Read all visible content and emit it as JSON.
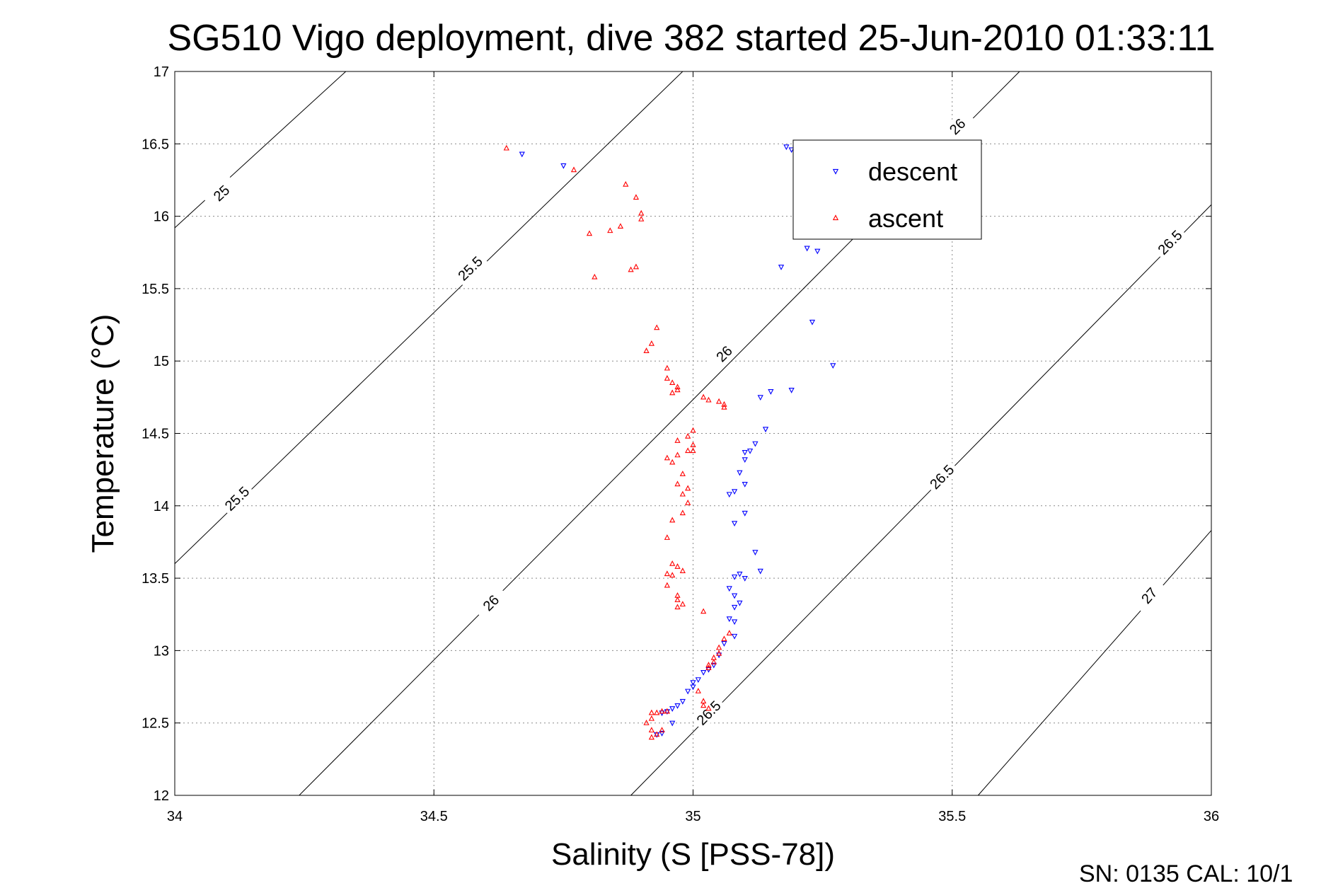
{
  "chart_data": {
    "type": "scatter",
    "title": "SG510 Vigo deployment, dive 382 started 25-Jun-2010 01:33:11",
    "xlabel": "Salinity (S [PSS-78])",
    "ylabel": "Temperature (°C)",
    "xlim": [
      34,
      36
    ],
    "ylim": [
      12,
      17
    ],
    "xticks": [
      "34",
      "34.5",
      "35",
      "35.5",
      "36"
    ],
    "yticks": [
      "12",
      "12.5",
      "13",
      "13.5",
      "14",
      "14.5",
      "15",
      "15.5",
      "16",
      "16.5",
      "17"
    ],
    "grid": true,
    "legend_position": "top-right",
    "footer": "SN: 0135  CAL: 10/1",
    "contours": [
      {
        "label": "25",
        "points": [
          [
            34.0,
            15.92
          ],
          [
            34.33,
            17.0
          ]
        ],
        "labels_at": [
          [
            34.09,
            16.16
          ]
        ]
      },
      {
        "label": "25.5",
        "points": [
          [
            34.0,
            13.6
          ],
          [
            34.98,
            17.0
          ]
        ],
        "labels_at": [
          [
            34.12,
            14.05
          ],
          [
            34.57,
            15.64
          ]
        ]
      },
      {
        "label": "26",
        "points": [
          [
            34.24,
            12.0
          ],
          [
            35.63,
            17.0
          ]
        ],
        "labels_at": [
          [
            34.61,
            13.33
          ],
          [
            35.06,
            15.05
          ],
          [
            35.51,
            16.62
          ]
        ]
      },
      {
        "label": "26.5",
        "points": [
          [
            34.88,
            12.0
          ],
          [
            36.0,
            16.08
          ]
        ],
        "labels_at": [
          [
            35.03,
            12.57
          ],
          [
            35.48,
            14.2
          ],
          [
            35.92,
            15.82
          ]
        ]
      },
      {
        "label": "27",
        "points": [
          [
            35.55,
            12.0
          ],
          [
            36.0,
            13.83
          ]
        ],
        "labels_at": [
          [
            35.88,
            13.38
          ]
        ]
      }
    ],
    "series": [
      {
        "name": "descent",
        "color": "#0000ff",
        "marker": "triangle-down",
        "points": [
          [
            34.67,
            16.43
          ],
          [
            34.75,
            16.35
          ],
          [
            35.18,
            16.48
          ],
          [
            35.19,
            16.46
          ],
          [
            35.22,
            15.78
          ],
          [
            35.24,
            15.76
          ],
          [
            35.17,
            15.65
          ],
          [
            35.23,
            15.27
          ],
          [
            35.27,
            14.97
          ],
          [
            35.19,
            14.8
          ],
          [
            35.15,
            14.79
          ],
          [
            35.13,
            14.75
          ],
          [
            35.14,
            14.53
          ],
          [
            35.12,
            14.43
          ],
          [
            35.11,
            14.38
          ],
          [
            35.1,
            14.37
          ],
          [
            35.1,
            14.32
          ],
          [
            35.09,
            14.23
          ],
          [
            35.1,
            14.15
          ],
          [
            35.08,
            14.1
          ],
          [
            35.07,
            14.08
          ],
          [
            35.1,
            13.95
          ],
          [
            35.08,
            13.88
          ],
          [
            35.12,
            13.68
          ],
          [
            35.13,
            13.55
          ],
          [
            35.09,
            13.53
          ],
          [
            35.1,
            13.5
          ],
          [
            35.08,
            13.51
          ],
          [
            35.07,
            13.43
          ],
          [
            35.08,
            13.38
          ],
          [
            35.09,
            13.33
          ],
          [
            35.08,
            13.3
          ],
          [
            35.07,
            13.22
          ],
          [
            35.08,
            13.2
          ],
          [
            35.08,
            13.1
          ],
          [
            35.06,
            13.05
          ],
          [
            35.05,
            12.97
          ],
          [
            35.04,
            12.9
          ],
          [
            35.03,
            12.87
          ],
          [
            35.02,
            12.85
          ],
          [
            35.01,
            12.8
          ],
          [
            35.0,
            12.78
          ],
          [
            35.0,
            12.75
          ],
          [
            34.99,
            12.72
          ],
          [
            34.98,
            12.65
          ],
          [
            34.97,
            12.62
          ],
          [
            34.96,
            12.6
          ],
          [
            34.95,
            12.58
          ],
          [
            34.94,
            12.57
          ],
          [
            34.96,
            12.5
          ],
          [
            34.94,
            12.43
          ],
          [
            34.93,
            12.42
          ]
        ]
      },
      {
        "name": "ascent",
        "color": "#ff0000",
        "marker": "triangle-up",
        "points": [
          [
            34.64,
            16.47
          ],
          [
            34.77,
            16.32
          ],
          [
            34.87,
            16.22
          ],
          [
            34.89,
            16.13
          ],
          [
            34.9,
            16.02
          ],
          [
            34.9,
            15.98
          ],
          [
            34.86,
            15.93
          ],
          [
            34.84,
            15.9
          ],
          [
            34.8,
            15.88
          ],
          [
            34.89,
            15.65
          ],
          [
            34.88,
            15.63
          ],
          [
            34.81,
            15.58
          ],
          [
            34.93,
            15.23
          ],
          [
            34.92,
            15.12
          ],
          [
            34.91,
            15.07
          ],
          [
            34.95,
            14.95
          ],
          [
            34.95,
            14.88
          ],
          [
            34.96,
            14.85
          ],
          [
            34.97,
            14.82
          ],
          [
            34.97,
            14.8
          ],
          [
            34.96,
            14.78
          ],
          [
            35.02,
            14.75
          ],
          [
            35.03,
            14.73
          ],
          [
            35.05,
            14.72
          ],
          [
            35.06,
            14.7
          ],
          [
            35.06,
            14.68
          ],
          [
            35.0,
            14.52
          ],
          [
            34.99,
            14.48
          ],
          [
            34.97,
            14.45
          ],
          [
            35.0,
            14.42
          ],
          [
            34.99,
            14.38
          ],
          [
            35.0,
            14.38
          ],
          [
            34.97,
            14.35
          ],
          [
            34.95,
            14.33
          ],
          [
            34.96,
            14.3
          ],
          [
            34.98,
            14.22
          ],
          [
            34.97,
            14.15
          ],
          [
            34.99,
            14.12
          ],
          [
            34.98,
            14.08
          ],
          [
            34.99,
            14.02
          ],
          [
            34.98,
            13.95
          ],
          [
            34.96,
            13.9
          ],
          [
            34.95,
            13.78
          ],
          [
            34.96,
            13.6
          ],
          [
            34.97,
            13.58
          ],
          [
            34.98,
            13.55
          ],
          [
            34.95,
            13.53
          ],
          [
            34.96,
            13.52
          ],
          [
            34.97,
            13.38
          ],
          [
            34.97,
            13.35
          ],
          [
            34.98,
            13.32
          ],
          [
            34.97,
            13.3
          ],
          [
            35.02,
            13.27
          ],
          [
            34.95,
            13.45
          ],
          [
            35.07,
            13.12
          ],
          [
            35.06,
            13.08
          ],
          [
            35.05,
            13.02
          ],
          [
            35.05,
            12.98
          ],
          [
            35.04,
            12.95
          ],
          [
            35.04,
            12.92
          ],
          [
            35.03,
            12.9
          ],
          [
            35.03,
            12.88
          ],
          [
            35.01,
            12.72
          ],
          [
            35.02,
            12.65
          ],
          [
            35.02,
            12.62
          ],
          [
            35.03,
            12.6
          ],
          [
            34.95,
            12.58
          ],
          [
            34.94,
            12.58
          ],
          [
            34.93,
            12.57
          ],
          [
            34.92,
            12.57
          ],
          [
            34.92,
            12.53
          ],
          [
            34.91,
            12.5
          ],
          [
            34.92,
            12.45
          ],
          [
            34.94,
            12.45
          ],
          [
            34.93,
            12.42
          ],
          [
            34.92,
            12.4
          ]
        ]
      }
    ]
  }
}
